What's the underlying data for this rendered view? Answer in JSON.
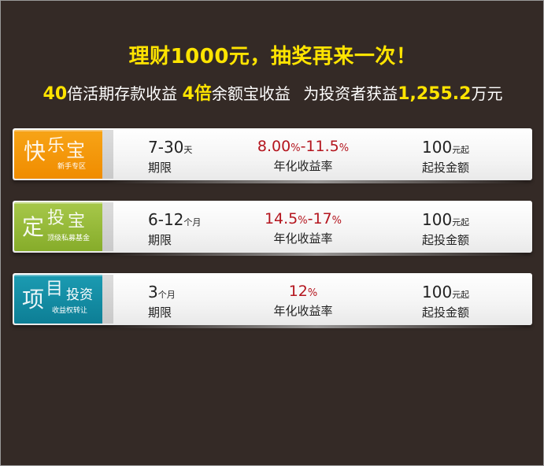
{
  "headline": "理财1000元，抽奖再来一次！",
  "subline": {
    "p1_num": "40",
    "p1_text": "倍活期存款收益",
    "p2_num": "4倍",
    "p2_text": "余额宝收益",
    "p3_text": "为投资者获益",
    "p3_num": "1,255.2",
    "p3_unit": "万元"
  },
  "products": [
    {
      "badge": {
        "big": "快",
        "c2": "乐",
        "c3": "宝",
        "sub": "新手专区"
      },
      "period": {
        "value": "7-30",
        "unit": "天",
        "label": "期限"
      },
      "rate": {
        "from": "8.00",
        "from_unit": "%",
        "sep": "-",
        "to": "11.5",
        "to_unit": "%",
        "label": "年化收益率"
      },
      "min": {
        "value": "100",
        "unit": "元起",
        "label": "起投金额"
      }
    },
    {
      "badge": {
        "big": "定",
        "c2": "投",
        "c3": "宝",
        "sub": "顶级私募基金"
      },
      "period": {
        "value": "6-12",
        "unit": "个月",
        "label": "期限"
      },
      "rate": {
        "from": "14.5",
        "from_unit": "%",
        "sep": "-",
        "to": "17",
        "to_unit": "%",
        "label": "年化收益率"
      },
      "min": {
        "value": "100",
        "unit": "元起",
        "label": "起投金额"
      }
    },
    {
      "badge": {
        "big": "项",
        "c2": "目",
        "c3": "投资",
        "sub": "收益权转让"
      },
      "period": {
        "value": "3",
        "unit": "个月",
        "label": "期限"
      },
      "rate": {
        "from": "12",
        "from_unit": "%",
        "sep": "",
        "to": "",
        "to_unit": "",
        "label": "年化收益率"
      },
      "min": {
        "value": "100",
        "unit": "元起",
        "label": "起投金额"
      }
    }
  ]
}
